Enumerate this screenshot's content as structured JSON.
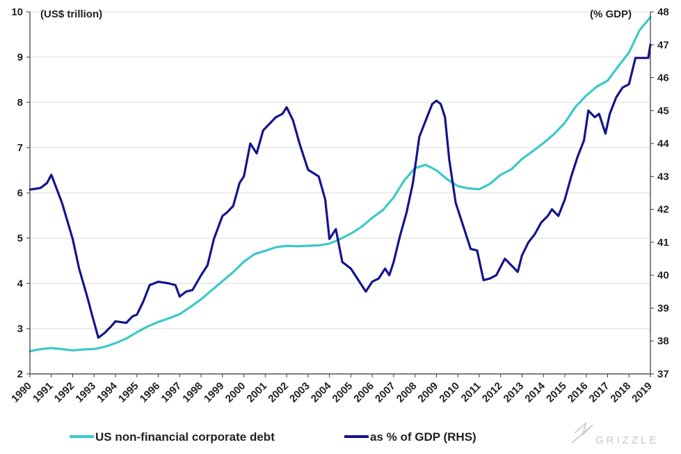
{
  "colors": {
    "debt": "#3cc8c8",
    "gdp": "#14148c",
    "grid": "#d9d9d9",
    "axis": "#333333",
    "brand": "#c8c8c8"
  },
  "brand": {
    "name": "GRIZZLE"
  },
  "chart_data": {
    "type": "line",
    "left_unit": "(US$ trillion)",
    "right_unit": "(% GDP)",
    "x_range": [
      1990,
      2019
    ],
    "xticks": [
      "1990",
      "1991",
      "1992",
      "1993",
      "1994",
      "1995",
      "1996",
      "1997",
      "1998",
      "1999",
      "2000",
      "2001",
      "2002",
      "2003",
      "2004",
      "2005",
      "2006",
      "2007",
      "2008",
      "2009",
      "2010",
      "2011",
      "2012",
      "2013",
      "2014",
      "2015",
      "2016",
      "2017",
      "2018",
      "2019"
    ],
    "ylim_left": [
      2,
      10
    ],
    "yticks_left": [
      "2",
      "3",
      "4",
      "5",
      "6",
      "7",
      "8",
      "9",
      "10"
    ],
    "ylim_right": [
      37,
      48
    ],
    "yticks_right": [
      "37",
      "38",
      "39",
      "40",
      "41",
      "42",
      "43",
      "44",
      "45",
      "46",
      "47",
      "48"
    ],
    "grid": "horizontal",
    "legend_position": "bottom",
    "series": [
      {
        "name": "US non-financial corporate debt",
        "axis": "left",
        "x": [
          1990,
          1990.5,
          1991,
          1991.5,
          1992,
          1992.5,
          1993,
          1993.5,
          1994,
          1994.5,
          1995,
          1995.5,
          1996,
          1996.5,
          1997,
          1997.5,
          1998,
          1998.5,
          1999,
          1999.5,
          2000,
          2000.5,
          2001,
          2001.5,
          2002,
          2002.5,
          2003,
          2003.5,
          2004,
          2004.5,
          2005,
          2005.5,
          2006,
          2006.5,
          2007,
          2007.5,
          2008,
          2008.5,
          2009,
          2009.5,
          2010,
          2010.5,
          2011,
          2011.5,
          2012,
          2012.5,
          2013,
          2013.5,
          2014,
          2014.5,
          2015,
          2015.5,
          2016,
          2016.5,
          2017,
          2017.5,
          2018,
          2018.5,
          2019
        ],
        "values": [
          2.5,
          2.55,
          2.57,
          2.55,
          2.52,
          2.54,
          2.55,
          2.6,
          2.68,
          2.78,
          2.92,
          3.05,
          3.15,
          3.23,
          3.32,
          3.48,
          3.65,
          3.85,
          4.05,
          4.25,
          4.48,
          4.65,
          4.72,
          4.8,
          4.83,
          4.82,
          4.83,
          4.84,
          4.88,
          4.98,
          5.1,
          5.25,
          5.45,
          5.62,
          5.9,
          6.28,
          6.55,
          6.62,
          6.5,
          6.3,
          6.15,
          6.1,
          6.08,
          6.2,
          6.4,
          6.52,
          6.75,
          6.92,
          7.1,
          7.3,
          7.55,
          7.9,
          8.15,
          8.35,
          8.48,
          8.8,
          9.1,
          9.6,
          9.88
        ]
      },
      {
        "name": "as % of GDP (RHS)",
        "axis": "right",
        "x": [
          1990,
          1990.5,
          1990.8,
          1991,
          1991.5,
          1992,
          1992.3,
          1992.7,
          1992.9,
          1993.2,
          1993.5,
          1993.8,
          1994,
          1994.5,
          1994.8,
          1995,
          1995.3,
          1995.6,
          1996,
          1996.5,
          1996.8,
          1997,
          1997.3,
          1997.6,
          1998,
          1998.3,
          1998.6,
          1999,
          1999.2,
          1999.5,
          1999.8,
          2000,
          2000.3,
          2000.6,
          2000.9,
          2001.2,
          2001.5,
          2001.8,
          2002,
          2002.3,
          2002.6,
          2003,
          2003.5,
          2003.8,
          2004,
          2004.3,
          2004.6,
          2005,
          2005.4,
          2005.7,
          2006,
          2006.3,
          2006.6,
          2006.8,
          2007,
          2007.3,
          2007.6,
          2007.9,
          2008.2,
          2008.5,
          2008.8,
          2009,
          2009.2,
          2009.4,
          2009.6,
          2009.9,
          2010.2,
          2010.6,
          2010.9,
          2011.2,
          2011.5,
          2011.8,
          2012.2,
          2012.5,
          2012.8,
          2013,
          2013.3,
          2013.6,
          2013.9,
          2014.2,
          2014.4,
          2014.7,
          2015,
          2015.3,
          2015.6,
          2015.9,
          2016.1,
          2016.4,
          2016.6,
          2016.9,
          2017.1,
          2017.4,
          2017.7,
          2018,
          2018.3,
          2018.6,
          2018.9,
          2019
        ],
        "values": [
          42.6,
          42.65,
          42.8,
          43.05,
          42.2,
          41.1,
          40.2,
          39.3,
          38.8,
          38.1,
          38.25,
          38.45,
          38.6,
          38.55,
          38.75,
          38.8,
          39.2,
          39.7,
          39.8,
          39.75,
          39.7,
          39.35,
          39.5,
          39.55,
          40.0,
          40.3,
          41.1,
          41.8,
          41.9,
          42.1,
          42.8,
          43.0,
          44.0,
          43.7,
          44.4,
          44.6,
          44.8,
          44.9,
          45.1,
          44.7,
          44.0,
          43.2,
          43.0,
          42.3,
          41.1,
          41.4,
          40.4,
          40.2,
          39.8,
          39.5,
          39.8,
          39.9,
          40.2,
          40.0,
          40.4,
          41.2,
          41.9,
          42.8,
          44.2,
          44.7,
          45.2,
          45.3,
          45.2,
          44.8,
          43.5,
          42.2,
          41.6,
          40.8,
          40.75,
          39.85,
          39.9,
          40.0,
          40.5,
          40.3,
          40.1,
          40.6,
          41.0,
          41.25,
          41.6,
          41.8,
          42.0,
          41.8,
          42.3,
          43.0,
          43.6,
          44.1,
          45.0,
          44.8,
          44.9,
          44.3,
          44.9,
          45.4,
          45.7,
          45.8,
          46.6,
          46.6,
          46.6,
          47.0
        ]
      }
    ]
  }
}
